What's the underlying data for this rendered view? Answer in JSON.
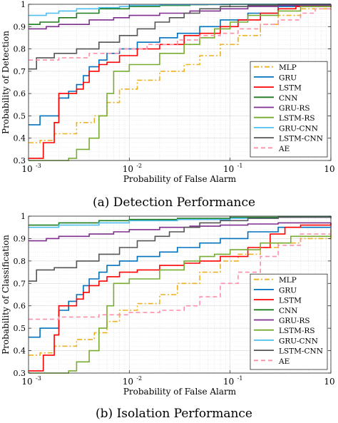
{
  "chart_data": [
    {
      "type": "line",
      "subplot_label": "(a)",
      "caption": "Detection Performance",
      "xlabel": "Probability of False Alarm",
      "ylabel": "Probability of Detection",
      "xscale": "log",
      "xlim": [
        0.001,
        1
      ],
      "ylim": [
        0.3,
        1
      ],
      "x_ticks": [
        0.001,
        0.01,
        0.1,
        1
      ],
      "x_tick_labels": [
        [
          "10",
          "-3"
        ],
        [
          "10",
          "-2"
        ],
        [
          "10",
          "-1"
        ],
        [
          "10",
          "0"
        ]
      ],
      "y_ticks": [
        0.3,
        0.4,
        0.5,
        0.6,
        0.7,
        0.8,
        0.9,
        1
      ],
      "y_tick_labels": [
        "0.3",
        "0.4",
        "0.5",
        "0.6",
        "0.7",
        "0.8",
        "0.9",
        "1"
      ],
      "grid": true,
      "legend_position": "bottom-right",
      "series": [
        {
          "name": "MLP",
          "color": "#EDB120",
          "dash": "dashdot",
          "x": [
            0.001,
            0.0013,
            0.0018,
            0.003,
            0.0045,
            0.006,
            0.008,
            0.012,
            0.02,
            0.035,
            0.05,
            0.08,
            0.12,
            0.2,
            0.3,
            0.5,
            1
          ],
          "y": [
            0.38,
            0.39,
            0.42,
            0.47,
            0.5,
            0.56,
            0.62,
            0.66,
            0.7,
            0.73,
            0.77,
            0.82,
            0.86,
            0.91,
            0.95,
            0.98,
            1.0
          ]
        },
        {
          "name": "GRU",
          "color": "#0072BD",
          "dash": "solid",
          "x": [
            0.001,
            0.0013,
            0.002,
            0.0025,
            0.003,
            0.0035,
            0.004,
            0.005,
            0.006,
            0.008,
            0.012,
            0.02,
            0.03,
            0.05,
            0.08,
            0.15,
            0.3,
            1
          ],
          "y": [
            0.46,
            0.5,
            0.58,
            0.61,
            0.64,
            0.68,
            0.72,
            0.75,
            0.78,
            0.8,
            0.83,
            0.85,
            0.87,
            0.9,
            0.93,
            0.96,
            0.99,
            1.0
          ]
        },
        {
          "name": "LSTM",
          "color": "#D95319",
          "stroke": "#FF0000",
          "dash": "solid",
          "x": [
            0.001,
            0.0014,
            0.0018,
            0.002,
            0.003,
            0.0035,
            0.004,
            0.005,
            0.006,
            0.008,
            0.012,
            0.02,
            0.035,
            0.05,
            0.08,
            0.12,
            0.2,
            0.3,
            0.45,
            1
          ],
          "y": [
            0.31,
            0.38,
            0.47,
            0.6,
            0.62,
            0.65,
            0.7,
            0.73,
            0.74,
            0.77,
            0.8,
            0.82,
            0.86,
            0.87,
            0.9,
            0.93,
            0.96,
            0.98,
            0.99,
            1.0
          ]
        },
        {
          "name": "CNN",
          "color": "#1E7B1E",
          "dash": "solid",
          "x": [
            0.001,
            0.0013,
            0.002,
            0.003,
            0.005,
            0.01,
            0.02,
            0.04,
            0.06,
            0.1,
            0.3,
            1
          ],
          "y": [
            0.91,
            0.92,
            0.94,
            0.96,
            0.98,
            0.99,
            0.995,
            0.998,
            0.999,
            1.0,
            1.0,
            1.0
          ]
        },
        {
          "name": "GRU-RS",
          "color": "#7E2F8E",
          "dash": "solid",
          "x": [
            0.001,
            0.0015,
            0.002,
            0.004,
            0.007,
            0.01,
            0.02,
            0.04,
            0.08,
            0.15,
            0.3,
            1
          ],
          "y": [
            0.89,
            0.9,
            0.91,
            0.93,
            0.94,
            0.95,
            0.96,
            0.97,
            0.98,
            0.99,
            0.995,
            1.0
          ]
        },
        {
          "name": "LSTM-RS",
          "color": "#77AC30",
          "dash": "solid",
          "x": [
            0.001,
            0.002,
            0.0025,
            0.003,
            0.004,
            0.005,
            0.006,
            0.007,
            0.01,
            0.02,
            0.035,
            0.05,
            0.07,
            0.1,
            0.15,
            0.3,
            0.5,
            1
          ],
          "y": [
            0.3,
            0.3,
            0.31,
            0.35,
            0.4,
            0.5,
            0.6,
            0.7,
            0.73,
            0.78,
            0.82,
            0.85,
            0.89,
            0.92,
            0.95,
            0.97,
            0.99,
            1.0
          ]
        },
        {
          "name": "GRU-CNN",
          "color": "#4DBEEE",
          "dash": "solid",
          "x": [
            0.001,
            0.0015,
            0.002,
            0.003,
            0.005,
            0.008,
            0.01,
            0.02,
            0.04,
            0.08,
            0.15,
            0.3,
            1
          ],
          "y": [
            0.95,
            0.96,
            0.97,
            0.98,
            0.985,
            0.99,
            0.995,
            0.998,
            0.999,
            1.0,
            1.0,
            1.0,
            1.0
          ]
        },
        {
          "name": "LSTM-CNN",
          "color": "#555555",
          "dash": "solid",
          "x": [
            0.001,
            0.0012,
            0.0018,
            0.003,
            0.005,
            0.008,
            0.012,
            0.018,
            0.025,
            0.035,
            0.05,
            0.08,
            0.15,
            0.3,
            1
          ],
          "y": [
            0.71,
            0.76,
            0.78,
            0.8,
            0.83,
            0.86,
            0.89,
            0.92,
            0.94,
            0.96,
            0.98,
            0.99,
            0.995,
            1.0,
            1.0
          ]
        },
        {
          "name": "AE",
          "color": "#FF8FA8",
          "dash": "dashed",
          "x": [
            0.001,
            0.002,
            0.004,
            0.008,
            0.015,
            0.03,
            0.05,
            0.08,
            0.12,
            0.2,
            0.3,
            0.5,
            0.7,
            1
          ],
          "y": [
            0.75,
            0.76,
            0.78,
            0.8,
            0.82,
            0.84,
            0.86,
            0.87,
            0.89,
            0.91,
            0.93,
            0.96,
            0.98,
            1.0
          ]
        }
      ]
    },
    {
      "type": "line",
      "subplot_label": "(b)",
      "caption": "Isolation Performance",
      "xlabel": "Probability of False Alarm",
      "ylabel": "Probability of Classification",
      "xscale": "log",
      "xlim": [
        0.001,
        1
      ],
      "ylim": [
        0.3,
        1
      ],
      "x_ticks": [
        0.001,
        0.01,
        0.1,
        1
      ],
      "x_tick_labels": [
        [
          "10",
          "-3"
        ],
        [
          "10",
          "-2"
        ],
        [
          "10",
          "-1"
        ],
        [
          "10",
          "0"
        ]
      ],
      "y_ticks": [
        0.3,
        0.4,
        0.5,
        0.6,
        0.7,
        0.8,
        0.9,
        1
      ],
      "y_tick_labels": [
        "0.3",
        "0.4",
        "0.5",
        "0.6",
        "0.7",
        "0.8",
        "0.9",
        "1"
      ],
      "grid": true,
      "legend_position": "bottom-right",
      "series": [
        {
          "name": "MLP",
          "color": "#EDB120",
          "dash": "dashdot",
          "x": [
            0.001,
            0.0013,
            0.0018,
            0.003,
            0.0045,
            0.006,
            0.008,
            0.012,
            0.02,
            0.03,
            0.05,
            0.08,
            0.12,
            0.2,
            0.3,
            0.5,
            1
          ],
          "y": [
            0.38,
            0.39,
            0.42,
            0.45,
            0.48,
            0.53,
            0.58,
            0.61,
            0.65,
            0.7,
            0.75,
            0.8,
            0.83,
            0.86,
            0.88,
            0.9,
            0.92
          ]
        },
        {
          "name": "GRU",
          "color": "#0072BD",
          "dash": "solid",
          "x": [
            0.001,
            0.0013,
            0.002,
            0.0025,
            0.003,
            0.0035,
            0.004,
            0.005,
            0.006,
            0.008,
            0.012,
            0.02,
            0.03,
            0.05,
            0.08,
            0.15,
            0.3,
            1
          ],
          "y": [
            0.46,
            0.5,
            0.58,
            0.62,
            0.65,
            0.69,
            0.72,
            0.75,
            0.78,
            0.8,
            0.82,
            0.84,
            0.86,
            0.88,
            0.9,
            0.93,
            0.95,
            0.97
          ]
        },
        {
          "name": "LSTM",
          "color": "#D95319",
          "stroke": "#FF0000",
          "dash": "solid",
          "x": [
            0.001,
            0.0014,
            0.0018,
            0.002,
            0.003,
            0.0035,
            0.004,
            0.005,
            0.006,
            0.008,
            0.012,
            0.02,
            0.035,
            0.05,
            0.08,
            0.15,
            0.25,
            0.35,
            0.5,
            1
          ],
          "y": [
            0.31,
            0.38,
            0.47,
            0.6,
            0.63,
            0.66,
            0.69,
            0.71,
            0.73,
            0.75,
            0.76,
            0.78,
            0.79,
            0.8,
            0.82,
            0.86,
            0.92,
            0.95,
            0.96,
            0.97
          ]
        },
        {
          "name": "CNN",
          "color": "#1E7B1E",
          "dash": "solid",
          "x": [
            0.001,
            0.002,
            0.005,
            0.01,
            0.03,
            0.1,
            0.3,
            1
          ],
          "y": [
            0.96,
            0.97,
            0.98,
            0.985,
            0.99,
            0.995,
            0.998,
            1.0
          ]
        },
        {
          "name": "GRU-RS",
          "color": "#7E2F8E",
          "dash": "solid",
          "x": [
            0.001,
            0.0015,
            0.002,
            0.004,
            0.007,
            0.01,
            0.02,
            0.04,
            0.08,
            0.15,
            0.3,
            1
          ],
          "y": [
            0.89,
            0.9,
            0.91,
            0.92,
            0.93,
            0.94,
            0.95,
            0.955,
            0.96,
            0.965,
            0.97,
            0.97
          ]
        },
        {
          "name": "LSTM-RS",
          "color": "#77AC30",
          "dash": "solid",
          "x": [
            0.001,
            0.002,
            0.0025,
            0.003,
            0.004,
            0.005,
            0.006,
            0.007,
            0.01,
            0.02,
            0.035,
            0.05,
            0.07,
            0.1,
            0.2,
            0.4,
            1
          ],
          "y": [
            0.3,
            0.3,
            0.31,
            0.35,
            0.4,
            0.5,
            0.6,
            0.7,
            0.72,
            0.76,
            0.8,
            0.82,
            0.83,
            0.85,
            0.88,
            0.91,
            0.94
          ]
        },
        {
          "name": "GRU-CNN",
          "color": "#4DBEEE",
          "dash": "solid",
          "x": [
            0.001,
            0.002,
            0.005,
            0.01,
            0.03,
            0.1,
            0.3,
            1
          ],
          "y": [
            0.95,
            0.96,
            0.97,
            0.98,
            0.985,
            0.99,
            0.995,
            1.0
          ]
        },
        {
          "name": "LSTM-CNN",
          "color": "#555555",
          "dash": "solid",
          "x": [
            0.001,
            0.0012,
            0.0018,
            0.003,
            0.005,
            0.008,
            0.012,
            0.018,
            0.025,
            0.035,
            0.05,
            0.08,
            0.15,
            0.3,
            1
          ],
          "y": [
            0.71,
            0.76,
            0.77,
            0.8,
            0.83,
            0.86,
            0.89,
            0.91,
            0.93,
            0.95,
            0.97,
            0.98,
            0.99,
            0.995,
            1.0
          ]
        },
        {
          "name": "AE",
          "color": "#FF8FA8",
          "dash": "dashed",
          "x": [
            0.001,
            0.002,
            0.005,
            0.01,
            0.02,
            0.035,
            0.05,
            0.08,
            0.12,
            0.2,
            0.3,
            0.5,
            1
          ],
          "y": [
            0.54,
            0.55,
            0.56,
            0.57,
            0.58,
            0.6,
            0.64,
            0.7,
            0.75,
            0.82,
            0.87,
            0.92,
            0.96
          ]
        }
      ]
    }
  ]
}
